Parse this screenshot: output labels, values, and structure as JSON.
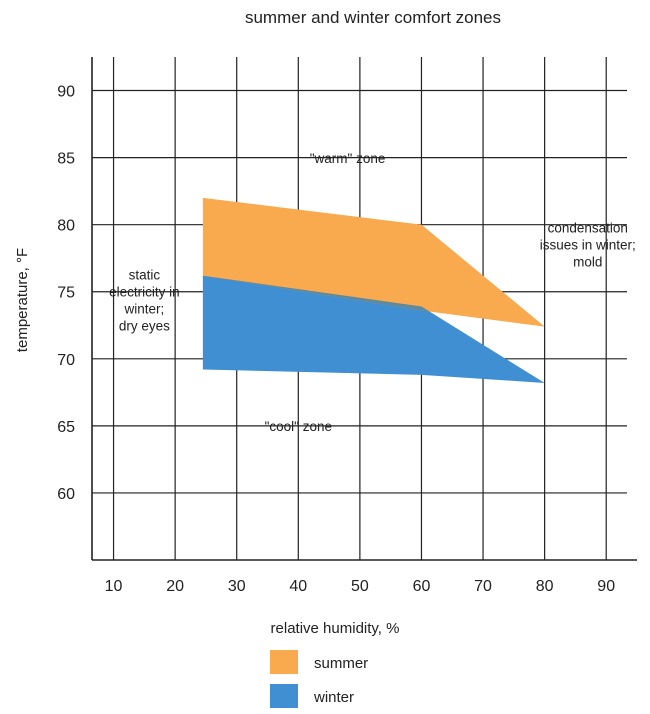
{
  "chart_data": {
    "type": "area",
    "title": "summer and winter comfort zones",
    "xlabel": "relative humidity, %",
    "ylabel": "temperature, °F",
    "xlim": [
      6.5,
      95
    ],
    "ylim": [
      55,
      92.5
    ],
    "x_ticks": [
      10,
      20,
      30,
      40,
      50,
      60,
      70,
      80,
      90
    ],
    "y_ticks": [
      60,
      65,
      70,
      75,
      80,
      85,
      90
    ],
    "grid": true,
    "legend_position": "bottom-center",
    "series": [
      {
        "name": "summer",
        "color": "#f9a94e",
        "polygon": [
          [
            24.5,
            82.0
          ],
          [
            60,
            80.0
          ],
          [
            80,
            72.4
          ],
          [
            60,
            73.6
          ],
          [
            24.5,
            76.2
          ]
        ]
      },
      {
        "name": "winter",
        "color": "#3f8fd2",
        "overlap_color": "#5e8a9e",
        "polygon": [
          [
            24.5,
            76.2
          ],
          [
            60,
            73.9
          ],
          [
            80,
            68.2
          ],
          [
            60,
            68.8
          ],
          [
            24.5,
            69.2
          ]
        ]
      }
    ],
    "annotations": [
      {
        "lines": [
          "\"warm\" zone"
        ],
        "x": 48,
        "y": 84.6
      },
      {
        "lines": [
          "\"cool\" zone"
        ],
        "x": 40,
        "y": 64.6
      },
      {
        "lines": [
          "static",
          "electricity in",
          "winter;",
          "dry eyes"
        ],
        "x": 15,
        "y": 75.9
      },
      {
        "lines": [
          "condensation",
          "issues in winter;",
          "mold"
        ],
        "x": 87,
        "y": 79.4
      }
    ]
  }
}
